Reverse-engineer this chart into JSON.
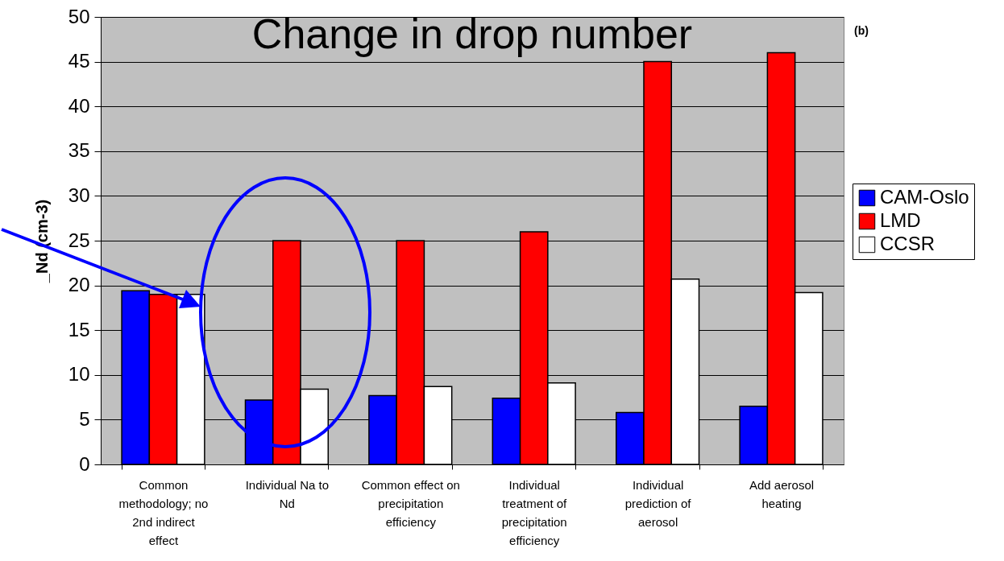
{
  "chart_data": {
    "type": "bar",
    "title": "Change in drop number",
    "ylabel": "_Nd (cm-3)",
    "categories": [
      "Common methodology; no 2nd indirect effect",
      "Individual Na to Nd",
      "Common effect on precipitation efficiency",
      "Individual treatment of precipitation efficiency",
      "Individual prediction of aerosol",
      "Add aerosol heating"
    ],
    "series": [
      {
        "name": "CAM-Oslo",
        "color": "#0000ff",
        "values": [
          19.4,
          7.2,
          7.7,
          7.4,
          5.8,
          6.5
        ]
      },
      {
        "name": "LMD",
        "color": "#ff0000",
        "values": [
          19.0,
          25,
          25,
          26,
          45,
          46
        ]
      },
      {
        "name": "CCSR",
        "color": "#ffffff",
        "values": [
          19.0,
          8.4,
          8.7,
          9.1,
          20.7,
          19.2
        ]
      }
    ],
    "ylim": [
      0,
      50
    ],
    "yticks": [
      0,
      5,
      10,
      15,
      20,
      25,
      30,
      35,
      40,
      45,
      50
    ],
    "grid": "y",
    "legend": "right",
    "annotations": [
      "(b)"
    ]
  }
}
